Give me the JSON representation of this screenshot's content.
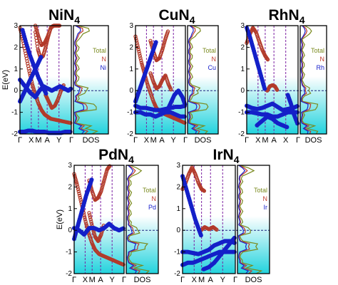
{
  "colors": {
    "n_band": "#b23a2a",
    "metal_band": "#1420c8",
    "total_dos": "#7a8a1e",
    "n_dos": "#c0392b",
    "metal_dos": "#1a22cc",
    "fill_top": "#ffffff",
    "fill_bottom": "#22d3dd",
    "kline": "#7b1fa2",
    "fermi": "#1a237e"
  },
  "chart_data": [
    {
      "type": "line",
      "panel": "band-structure-and-dos",
      "title_main": "NiN",
      "title_sub": "4",
      "ylabel": "E(eV)",
      "ylim": [
        -2,
        3
      ],
      "yticks": [
        "3",
        "2",
        "1",
        "0",
        "-1",
        "-2"
      ],
      "kpoints": [
        "Γ",
        "X",
        "M",
        "A",
        "Y",
        "Γ"
      ],
      "dos_label": "DOS",
      "legend": [
        "Total",
        "N",
        "Ni"
      ],
      "series": [
        {
          "name": "N",
          "x": [
            0,
            0.06,
            0.12,
            0.18,
            0.24,
            0.3,
            0.36,
            0.42,
            0.48,
            0.54,
            0.6,
            0.7,
            0.8,
            0.9,
            1.0
          ],
          "values": [
            2.9,
            2.3,
            1.6,
            0.9,
            0.3,
            -0.2,
            -0.6,
            -0.9,
            -1.1,
            -1.2,
            -1.3,
            -1.35,
            -1.4,
            -1.45,
            -1.5
          ]
        },
        {
          "name": "N",
          "x": [
            0.3,
            0.35,
            0.4,
            0.45,
            0.5,
            0.55,
            0.6,
            0.65
          ],
          "values": [
            2.7,
            1.9,
            1.5,
            1.6,
            2.0,
            2.5,
            2.9,
            3.0
          ]
        },
        {
          "name": "N",
          "x": [
            0.3,
            0.36,
            0.42,
            0.48,
            0.54,
            0.6,
            0.66,
            0.72,
            0.78
          ],
          "values": [
            3.0,
            2.5,
            2.1,
            2.2,
            2.5,
            2.9,
            3.0,
            3.0,
            3.0
          ]
        },
        {
          "name": "N",
          "x": [
            0.5,
            0.56,
            0.62,
            0.68,
            0.74,
            0.8,
            0.86
          ],
          "values": [
            -0.2,
            -0.5,
            -0.8,
            -0.7,
            -0.4,
            0.0,
            0.3
          ]
        },
        {
          "name": "Ni",
          "x": [
            0,
            0.08,
            0.16,
            0.24,
            0.32,
            0.4,
            0.48,
            0.56,
            0.64,
            0.72,
            0.8,
            0.88,
            1.0
          ],
          "values": [
            -1.9,
            -1.9,
            -1.85,
            -1.85,
            -1.9,
            -1.9,
            -1.9,
            -1.95,
            -1.95,
            -1.95,
            -1.95,
            -1.9,
            -1.9
          ]
        },
        {
          "name": "Ni",
          "x": [
            0,
            0.1,
            0.2,
            0.3,
            0.38,
            0.46,
            0.54,
            0.62,
            0.7,
            0.78,
            0.86,
            0.94,
            1.0
          ],
          "values": [
            0.5,
            0.2,
            -0.1,
            -0.3,
            0.0,
            0.2,
            0.1,
            0.0,
            0.1,
            0.2,
            0.1,
            0.0,
            0.1
          ]
        },
        {
          "name": "Ni",
          "x": [
            0,
            0.06,
            0.12,
            0.18,
            0.24,
            0.3,
            0.36,
            0.42
          ],
          "values": [
            -0.5,
            -0.2,
            0.1,
            0.4,
            0.7,
            1.0,
            1.3,
            1.6
          ]
        },
        {
          "name": "Ni",
          "x": [
            0.05,
            0.12,
            0.2,
            0.28,
            0.36,
            0.44,
            0.52
          ],
          "values": [
            2.8,
            2.2,
            1.6,
            1.1,
            0.6,
            0.2,
            -0.2
          ]
        }
      ]
    },
    {
      "type": "line",
      "panel": "band-structure-and-dos",
      "title_main": "CuN",
      "title_sub": "4",
      "ylabel": "",
      "ylim": [
        -2,
        3
      ],
      "yticks": [
        "3",
        "2",
        "1",
        "0",
        "-1",
        "-2"
      ],
      "kpoints": [
        "Γ",
        "X",
        "M",
        "A",
        "Y",
        "Γ"
      ],
      "dos_label": "DOS",
      "legend": [
        "Total",
        "N",
        "Cu"
      ],
      "series": [
        {
          "name": "N",
          "x": [
            0,
            0.06,
            0.12,
            0.18,
            0.24,
            0.3,
            0.36,
            0.42,
            0.5,
            0.6,
            0.7,
            0.8,
            0.9,
            1.0
          ],
          "values": [
            2.5,
            1.9,
            1.3,
            0.8,
            0.3,
            -0.1,
            -0.5,
            -0.8,
            -1.0,
            -1.1,
            -1.2,
            -1.3,
            -1.4,
            -1.5
          ]
        },
        {
          "name": "N",
          "x": [
            0.3,
            0.36,
            0.42,
            0.48,
            0.54,
            0.6,
            0.66
          ],
          "values": [
            2.3,
            1.8,
            1.4,
            1.5,
            1.9,
            2.4,
            2.8
          ]
        },
        {
          "name": "N",
          "x": [
            0.3,
            0.36,
            0.42,
            0.48,
            0.54,
            0.6,
            0.66,
            0.72
          ],
          "values": [
            0.8,
            0.4,
            0.1,
            0.2,
            0.5,
            0.7,
            0.3,
            0.0
          ]
        },
        {
          "name": "Cu",
          "x": [
            0,
            0.1,
            0.2,
            0.3,
            0.4,
            0.5,
            0.6,
            0.7,
            0.8,
            0.9,
            1.0
          ],
          "values": [
            -0.7,
            -0.8,
            -0.8,
            -0.85,
            -0.9,
            -0.9,
            -0.85,
            -0.8,
            -0.75,
            -0.75,
            -0.7
          ]
        },
        {
          "name": "Cu",
          "x": [
            0,
            0.1,
            0.2,
            0.3,
            0.4,
            0.5,
            0.6,
            0.7,
            0.8,
            0.9,
            1.0
          ],
          "values": [
            -1.0,
            -1.0,
            -1.1,
            -1.1,
            -1.2,
            -1.1,
            -1.0,
            -1.0,
            -1.1,
            -1.2,
            -1.2
          ]
        },
        {
          "name": "Cu",
          "x": [
            0,
            0.06,
            0.12,
            0.18,
            0.24,
            0.3,
            0.36,
            0.42
          ],
          "values": [
            -0.5,
            -0.1,
            0.3,
            0.7,
            1.1,
            1.5,
            1.9,
            2.3
          ]
        },
        {
          "name": "Cu",
          "x": [
            0.62,
            0.7,
            0.78,
            0.86,
            0.94,
            1.0
          ],
          "values": [
            -1.0,
            -0.6,
            -0.2,
            0.0,
            -0.3,
            -0.7
          ]
        }
      ]
    },
    {
      "type": "line",
      "panel": "band-structure-and-dos",
      "title_main": "RhN",
      "title_sub": "4",
      "ylabel": "",
      "ylim": [
        -2,
        3
      ],
      "yticks": [
        "3",
        "2",
        "1",
        "0",
        "-1",
        "-2"
      ],
      "kpoints": [
        "Γ",
        "X",
        "M",
        "A",
        "X",
        "Γ"
      ],
      "dos_label": "DOS",
      "legend": [
        "Total",
        "N",
        "Rh"
      ],
      "series": [
        {
          "name": "N",
          "x": [
            0,
            0.06,
            0.12,
            0.18,
            0.24,
            0.3,
            0.36,
            0.42
          ],
          "values": [
            2.2,
            2.6,
            2.9,
            2.7,
            2.3,
            1.9,
            1.6,
            1.4
          ]
        },
        {
          "name": "N",
          "x": [
            0.4,
            0.45,
            0.5,
            0.55,
            0.6
          ],
          "values": [
            0.0,
            0.2,
            0.25,
            0.2,
            0.0
          ]
        },
        {
          "name": "Rh",
          "x": [
            0,
            0.1,
            0.2,
            0.3,
            0.4,
            0.5,
            0.6,
            0.7,
            0.8,
            0.9,
            1.0
          ],
          "values": [
            -1.0,
            -1.0,
            -1.05,
            -1.1,
            -1.1,
            -1.2,
            -1.2,
            -1.1,
            -1.0,
            -1.0,
            -1.0
          ]
        },
        {
          "name": "Rh",
          "x": [
            0,
            0.1,
            0.2,
            0.3,
            0.4,
            0.5,
            0.6,
            0.7,
            0.8,
            0.9,
            1.0
          ],
          "values": [
            -0.7,
            -0.8,
            -0.85,
            -0.8,
            -0.7,
            -0.6,
            -0.75,
            -0.9,
            -0.85,
            -0.8,
            -0.7
          ]
        },
        {
          "name": "Rh",
          "x": [
            0.2,
            0.3,
            0.4,
            0.5,
            0.6,
            0.7,
            0.8
          ],
          "values": [
            -1.6,
            -1.4,
            -1.2,
            -1.3,
            -1.5,
            -1.6,
            -1.7
          ]
        },
        {
          "name": "Rh",
          "x": [
            0,
            0.06,
            0.12,
            0.18,
            0.24,
            0.3,
            0.36
          ],
          "values": [
            2.9,
            2.5,
            2.0,
            1.5,
            1.0,
            0.5,
            0.0
          ]
        },
        {
          "name": "Rh",
          "x": [
            0.8,
            0.86,
            0.92,
            1.0
          ],
          "values": [
            -0.2,
            -0.6,
            -1.1,
            -1.6
          ]
        }
      ]
    },
    {
      "type": "line",
      "panel": "band-structure-and-dos",
      "title_main": "PdN",
      "title_sub": "4",
      "ylabel": "E(eV)",
      "ylim": [
        -2,
        3
      ],
      "yticks": [
        "3",
        "2",
        "1",
        "0",
        "-1",
        "-2"
      ],
      "kpoints": [
        "Γ",
        "X",
        "M",
        "A",
        "Y",
        "Γ"
      ],
      "dos_label": "DOS",
      "legend": [
        "Total",
        "N",
        "Pd"
      ],
      "series": [
        {
          "name": "N",
          "x": [
            0,
            0.06,
            0.12,
            0.18,
            0.24,
            0.3,
            0.36,
            0.42,
            0.5,
            0.6,
            0.7,
            0.8,
            0.9,
            1.0
          ],
          "values": [
            2.6,
            2.1,
            1.5,
            0.9,
            0.3,
            -0.2,
            -0.6,
            -0.9,
            -1.1,
            -1.2,
            -1.3,
            -1.4,
            -1.5,
            -1.6
          ]
        },
        {
          "name": "N",
          "x": [
            0.3,
            0.36,
            0.42,
            0.48,
            0.54,
            0.6,
            0.66,
            0.72
          ],
          "values": [
            2.3,
            1.8,
            1.4,
            1.5,
            1.8,
            2.3,
            2.8,
            3.0
          ]
        },
        {
          "name": "N",
          "x": [
            0.3,
            0.36,
            0.42,
            0.48,
            0.54,
            0.6
          ],
          "values": [
            0.8,
            0.2,
            -0.3,
            -0.5,
            -0.2,
            0.3
          ]
        },
        {
          "name": "Pd",
          "x": [
            0,
            0.1,
            0.2,
            0.3,
            0.4,
            0.5,
            0.6,
            0.7,
            0.8,
            0.9,
            1.0
          ],
          "values": [
            0.1,
            0.0,
            -0.2,
            0.1,
            0.1,
            0.0,
            0.1,
            0.3,
            0.1,
            0.0,
            0.1
          ]
        },
        {
          "name": "Pd",
          "x": [
            0,
            0.06,
            0.12,
            0.18,
            0.24,
            0.3,
            0.36
          ],
          "values": [
            -0.4,
            0.1,
            0.6,
            1.1,
            1.6,
            2.0,
            2.4
          ]
        }
      ]
    },
    {
      "type": "line",
      "panel": "band-structure-and-dos",
      "title_main": "IrN",
      "title_sub": "4",
      "ylabel": "",
      "ylim": [
        -2,
        3
      ],
      "yticks": [
        "3",
        "2",
        "1",
        "0",
        "-1",
        "-2"
      ],
      "kpoints": [
        "Γ",
        "X",
        "M",
        "A",
        "Y",
        "Γ"
      ],
      "dos_label": "DOS",
      "legend": [
        "Total",
        "N",
        "Ir"
      ],
      "series": [
        {
          "name": "N",
          "x": [
            0,
            0.06,
            0.12,
            0.18,
            0.24,
            0.3,
            0.36,
            0.42
          ],
          "values": [
            1.9,
            2.2,
            2.6,
            2.9,
            2.6,
            2.2,
            1.9,
            1.8
          ]
        },
        {
          "name": "N",
          "x": [
            0.35,
            0.42,
            0.5,
            0.58,
            0.66
          ],
          "values": [
            0.0,
            0.15,
            0.05,
            0.15,
            0.0
          ]
        },
        {
          "name": "Ir",
          "x": [
            0,
            0.1,
            0.2,
            0.3,
            0.4,
            0.5,
            0.6,
            0.7,
            0.8,
            0.9,
            1.0
          ],
          "values": [
            -1.0,
            -1.0,
            -1.05,
            -1.1,
            -1.0,
            -0.9,
            -0.7,
            -0.6,
            -0.5,
            -0.5,
            -0.6
          ]
        },
        {
          "name": "Ir",
          "x": [
            0,
            0.1,
            0.2,
            0.3,
            0.4,
            0.5,
            0.6,
            0.7,
            0.8,
            0.9,
            1.0
          ],
          "values": [
            -1.6,
            -1.5,
            -1.5,
            -1.4,
            -1.3,
            -1.2,
            -1.1,
            -1.0,
            -1.0,
            -1.0,
            -1.0
          ]
        },
        {
          "name": "Ir",
          "x": [
            0.4,
            0.5,
            0.6,
            0.7,
            0.8,
            0.9,
            1.0
          ],
          "values": [
            -1.8,
            -1.7,
            -1.5,
            -1.2,
            -0.9,
            -0.6,
            -0.3
          ]
        },
        {
          "name": "Ir",
          "x": [
            0,
            0.06,
            0.12,
            0.18,
            0.24,
            0.3,
            0.36
          ],
          "values": [
            2.5,
            2.0,
            1.5,
            1.0,
            0.5,
            0.1,
            -0.3
          ]
        }
      ]
    }
  ]
}
